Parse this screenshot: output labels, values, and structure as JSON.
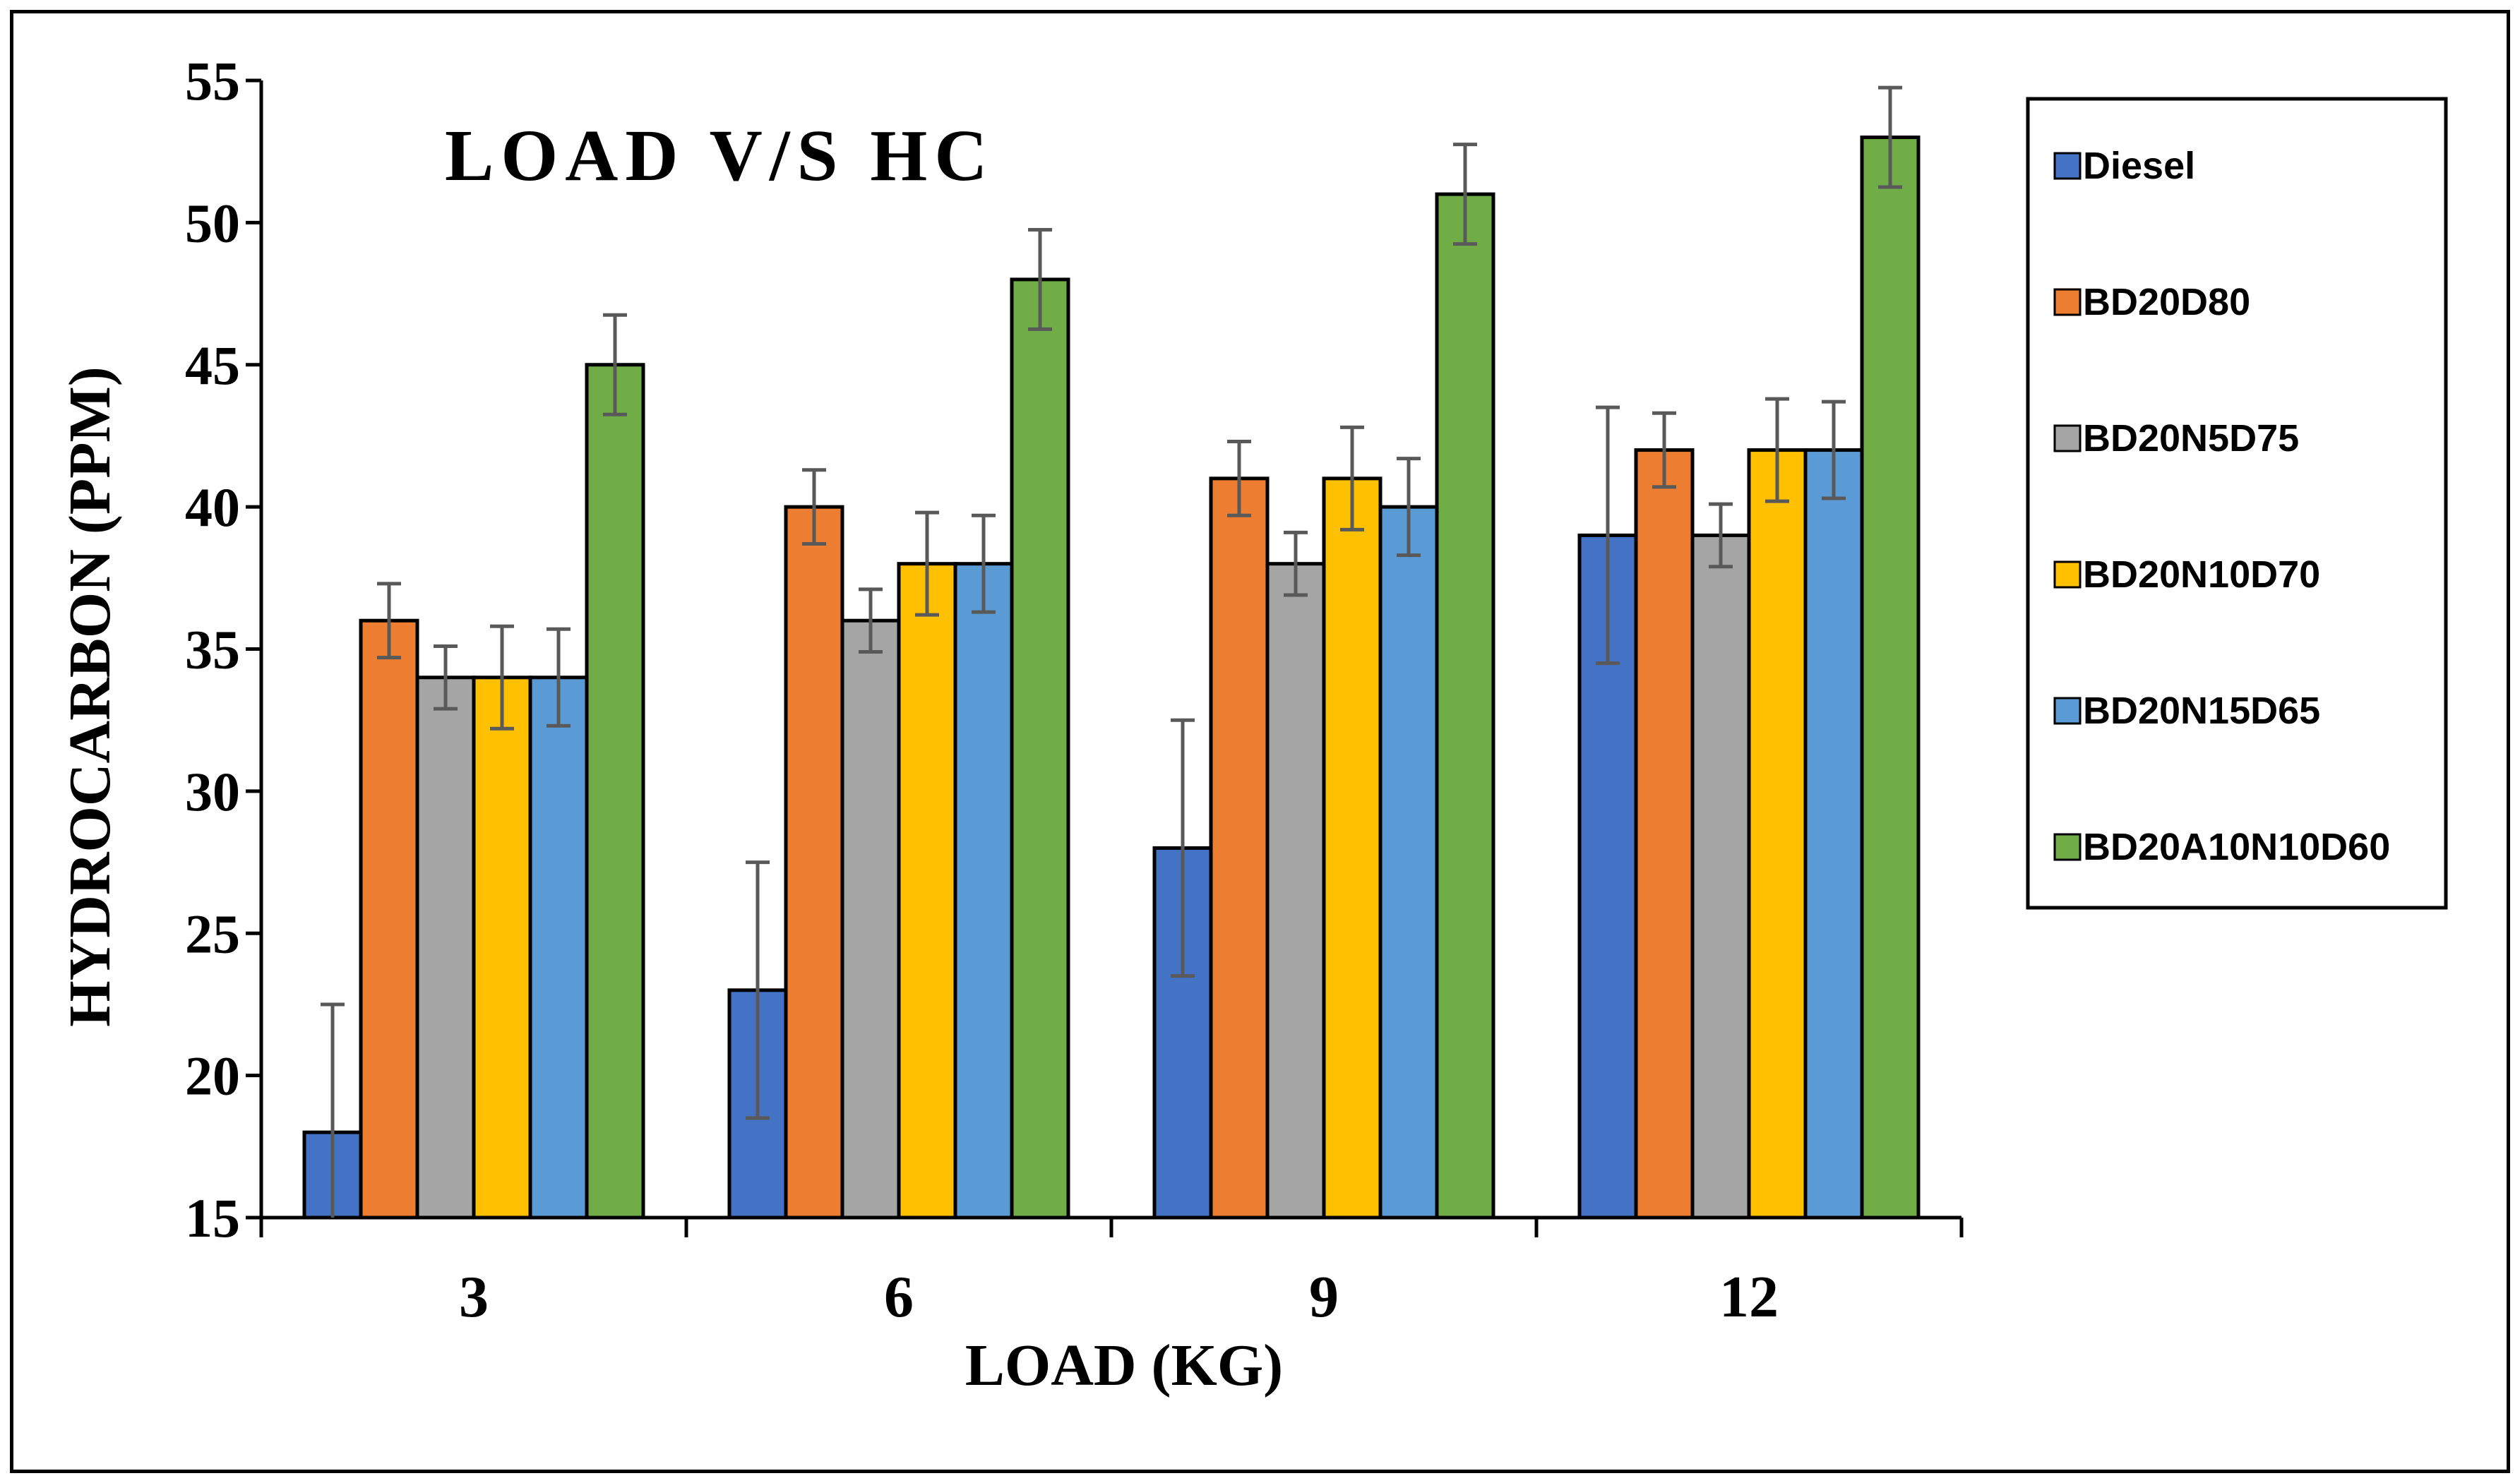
{
  "chart_data": {
    "type": "bar",
    "title": "LOAD V/S HC",
    "xlabel": "LOAD (KG)",
    "ylabel": "HYDROCARBON (PPM)",
    "ylim": [
      15,
      55
    ],
    "yticks": [
      15,
      20,
      25,
      30,
      35,
      40,
      45,
      50,
      55
    ],
    "categories": [
      "3",
      "6",
      "9",
      "12"
    ],
    "legend_position": "right",
    "series": [
      {
        "name": "Diesel",
        "color": "#4472C4",
        "values": [
          18,
          23,
          28,
          39
        ],
        "errors": [
          4.5,
          4.5,
          4.5,
          4.5
        ]
      },
      {
        "name": "BD20D80",
        "color": "#ED7D31",
        "values": [
          36,
          40,
          41,
          42
        ],
        "errors": [
          1.3,
          1.3,
          1.3,
          1.3
        ]
      },
      {
        "name": "BD20N5D75",
        "color": "#A5A5A5",
        "values": [
          34,
          36,
          38,
          39
        ],
        "errors": [
          1.1,
          1.1,
          1.1,
          1.1
        ]
      },
      {
        "name": "BD20N10D70",
        "color": "#FFC000",
        "values": [
          34,
          38,
          41,
          42
        ],
        "errors": [
          1.8,
          1.8,
          1.8,
          1.8
        ]
      },
      {
        "name": "BD20N15D65",
        "color": "#5B9BD5",
        "values": [
          34,
          38,
          40,
          42
        ],
        "errors": [
          1.7,
          1.7,
          1.7,
          1.7
        ]
      },
      {
        "name": "BD20A10N10D60",
        "color": "#70AD47",
        "values": [
          45,
          48,
          51,
          53
        ],
        "errors": [
          1.75,
          1.75,
          1.75,
          1.75
        ]
      }
    ]
  }
}
